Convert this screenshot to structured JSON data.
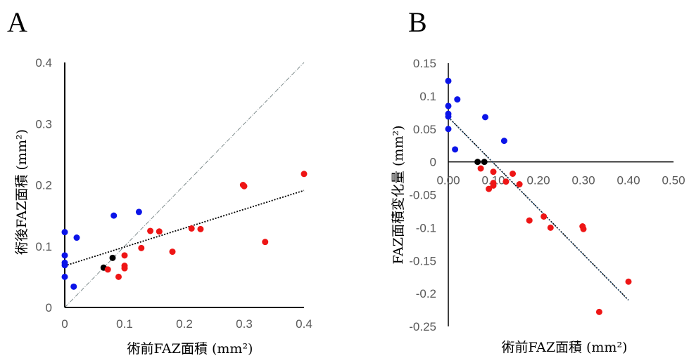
{
  "panels": {
    "a_letter": "A",
    "b_letter": "B"
  },
  "colors": {
    "blue": "#0b14e8",
    "red": "#ee1515",
    "black": "#000000",
    "tick": "#595959",
    "identity": "#7f8c8d",
    "trend_b": "#1f4e79"
  },
  "chart_data": [
    {
      "type": "scatter",
      "panel": "A",
      "xlabel": "術前FAZ面積 (mm²)",
      "ylabel": "術後FAZ面積 (mm²)",
      "xlim": [
        0,
        0.4
      ],
      "ylim": [
        0,
        0.4
      ],
      "xticks": [
        "0",
        "0.1",
        "0.2",
        "0.3",
        "0.4"
      ],
      "yticks": [
        "0",
        "0.1",
        "0.2",
        "0.3",
        "0.4"
      ],
      "grid": false,
      "identity_line": true,
      "trendline": {
        "x0": 0,
        "y0": 0.068,
        "x1": 0.4,
        "y1": 0.191
      },
      "series": [
        {
          "color": "blue",
          "points": [
            [
              0.0,
              0.123
            ],
            [
              0.0,
              0.085
            ],
            [
              0.0,
              0.073
            ],
            [
              0.0,
              0.069
            ],
            [
              0.0,
              0.05
            ],
            [
              0.02,
              0.114
            ],
            [
              0.015,
              0.034
            ],
            [
              0.082,
              0.15
            ],
            [
              0.124,
              0.156
            ]
          ]
        },
        {
          "color": "black",
          "points": [
            [
              0.065,
              0.065
            ],
            [
              0.08,
              0.081
            ]
          ]
        },
        {
          "color": "red",
          "points": [
            [
              0.072,
              0.062
            ],
            [
              0.09,
              0.05
            ],
            [
              0.1,
              0.068
            ],
            [
              0.1,
              0.064
            ],
            [
              0.1,
              0.085
            ],
            [
              0.128,
              0.097
            ],
            [
              0.143,
              0.125
            ],
            [
              0.158,
              0.124
            ],
            [
              0.18,
              0.091
            ],
            [
              0.212,
              0.129
            ],
            [
              0.227,
              0.128
            ],
            [
              0.298,
              0.2
            ],
            [
              0.3,
              0.198
            ],
            [
              0.335,
              0.107
            ],
            [
              0.4,
              0.218
            ]
          ]
        }
      ]
    },
    {
      "type": "scatter",
      "panel": "B",
      "xlabel": "術前FAZ面積 (mm²)",
      "ylabel": "FAZ面積変化量 (mm²)",
      "xlim": [
        0,
        0.5
      ],
      "ylim": [
        -0.25,
        0.15
      ],
      "xticks": [
        "0.00",
        "0.10",
        "0.20",
        "0.30",
        "0.40",
        "0.50"
      ],
      "yticks": [
        "0.15",
        "0.1",
        "0.05",
        "0",
        "-0.05",
        "-0.1",
        "-0.15",
        "-0.2",
        "-0.25"
      ],
      "grid": false,
      "trendline": {
        "x0": 0,
        "y0": 0.068,
        "x1": 0.4,
        "y1": -0.21
      },
      "series": [
        {
          "color": "blue",
          "points": [
            [
              0.0,
              0.123
            ],
            [
              0.0,
              0.085
            ],
            [
              0.0,
              0.073
            ],
            [
              0.0,
              0.069
            ],
            [
              0.0,
              0.05
            ],
            [
              0.02,
              0.095
            ],
            [
              0.015,
              0.019
            ],
            [
              0.082,
              0.068
            ],
            [
              0.124,
              0.032
            ]
          ]
        },
        {
          "color": "black",
          "points": [
            [
              0.065,
              0.0
            ],
            [
              0.08,
              0.0
            ]
          ]
        },
        {
          "color": "red",
          "points": [
            [
              0.072,
              -0.01
            ],
            [
              0.09,
              -0.041
            ],
            [
              0.1,
              -0.032
            ],
            [
              0.1,
              -0.036
            ],
            [
              0.1,
              -0.015
            ],
            [
              0.128,
              -0.03
            ],
            [
              0.143,
              -0.018
            ],
            [
              0.158,
              -0.034
            ],
            [
              0.18,
              -0.089
            ],
            [
              0.212,
              -0.083
            ],
            [
              0.227,
              -0.1
            ],
            [
              0.298,
              -0.098
            ],
            [
              0.3,
              -0.102
            ],
            [
              0.335,
              -0.228
            ],
            [
              0.4,
              -0.182
            ]
          ]
        }
      ]
    }
  ]
}
